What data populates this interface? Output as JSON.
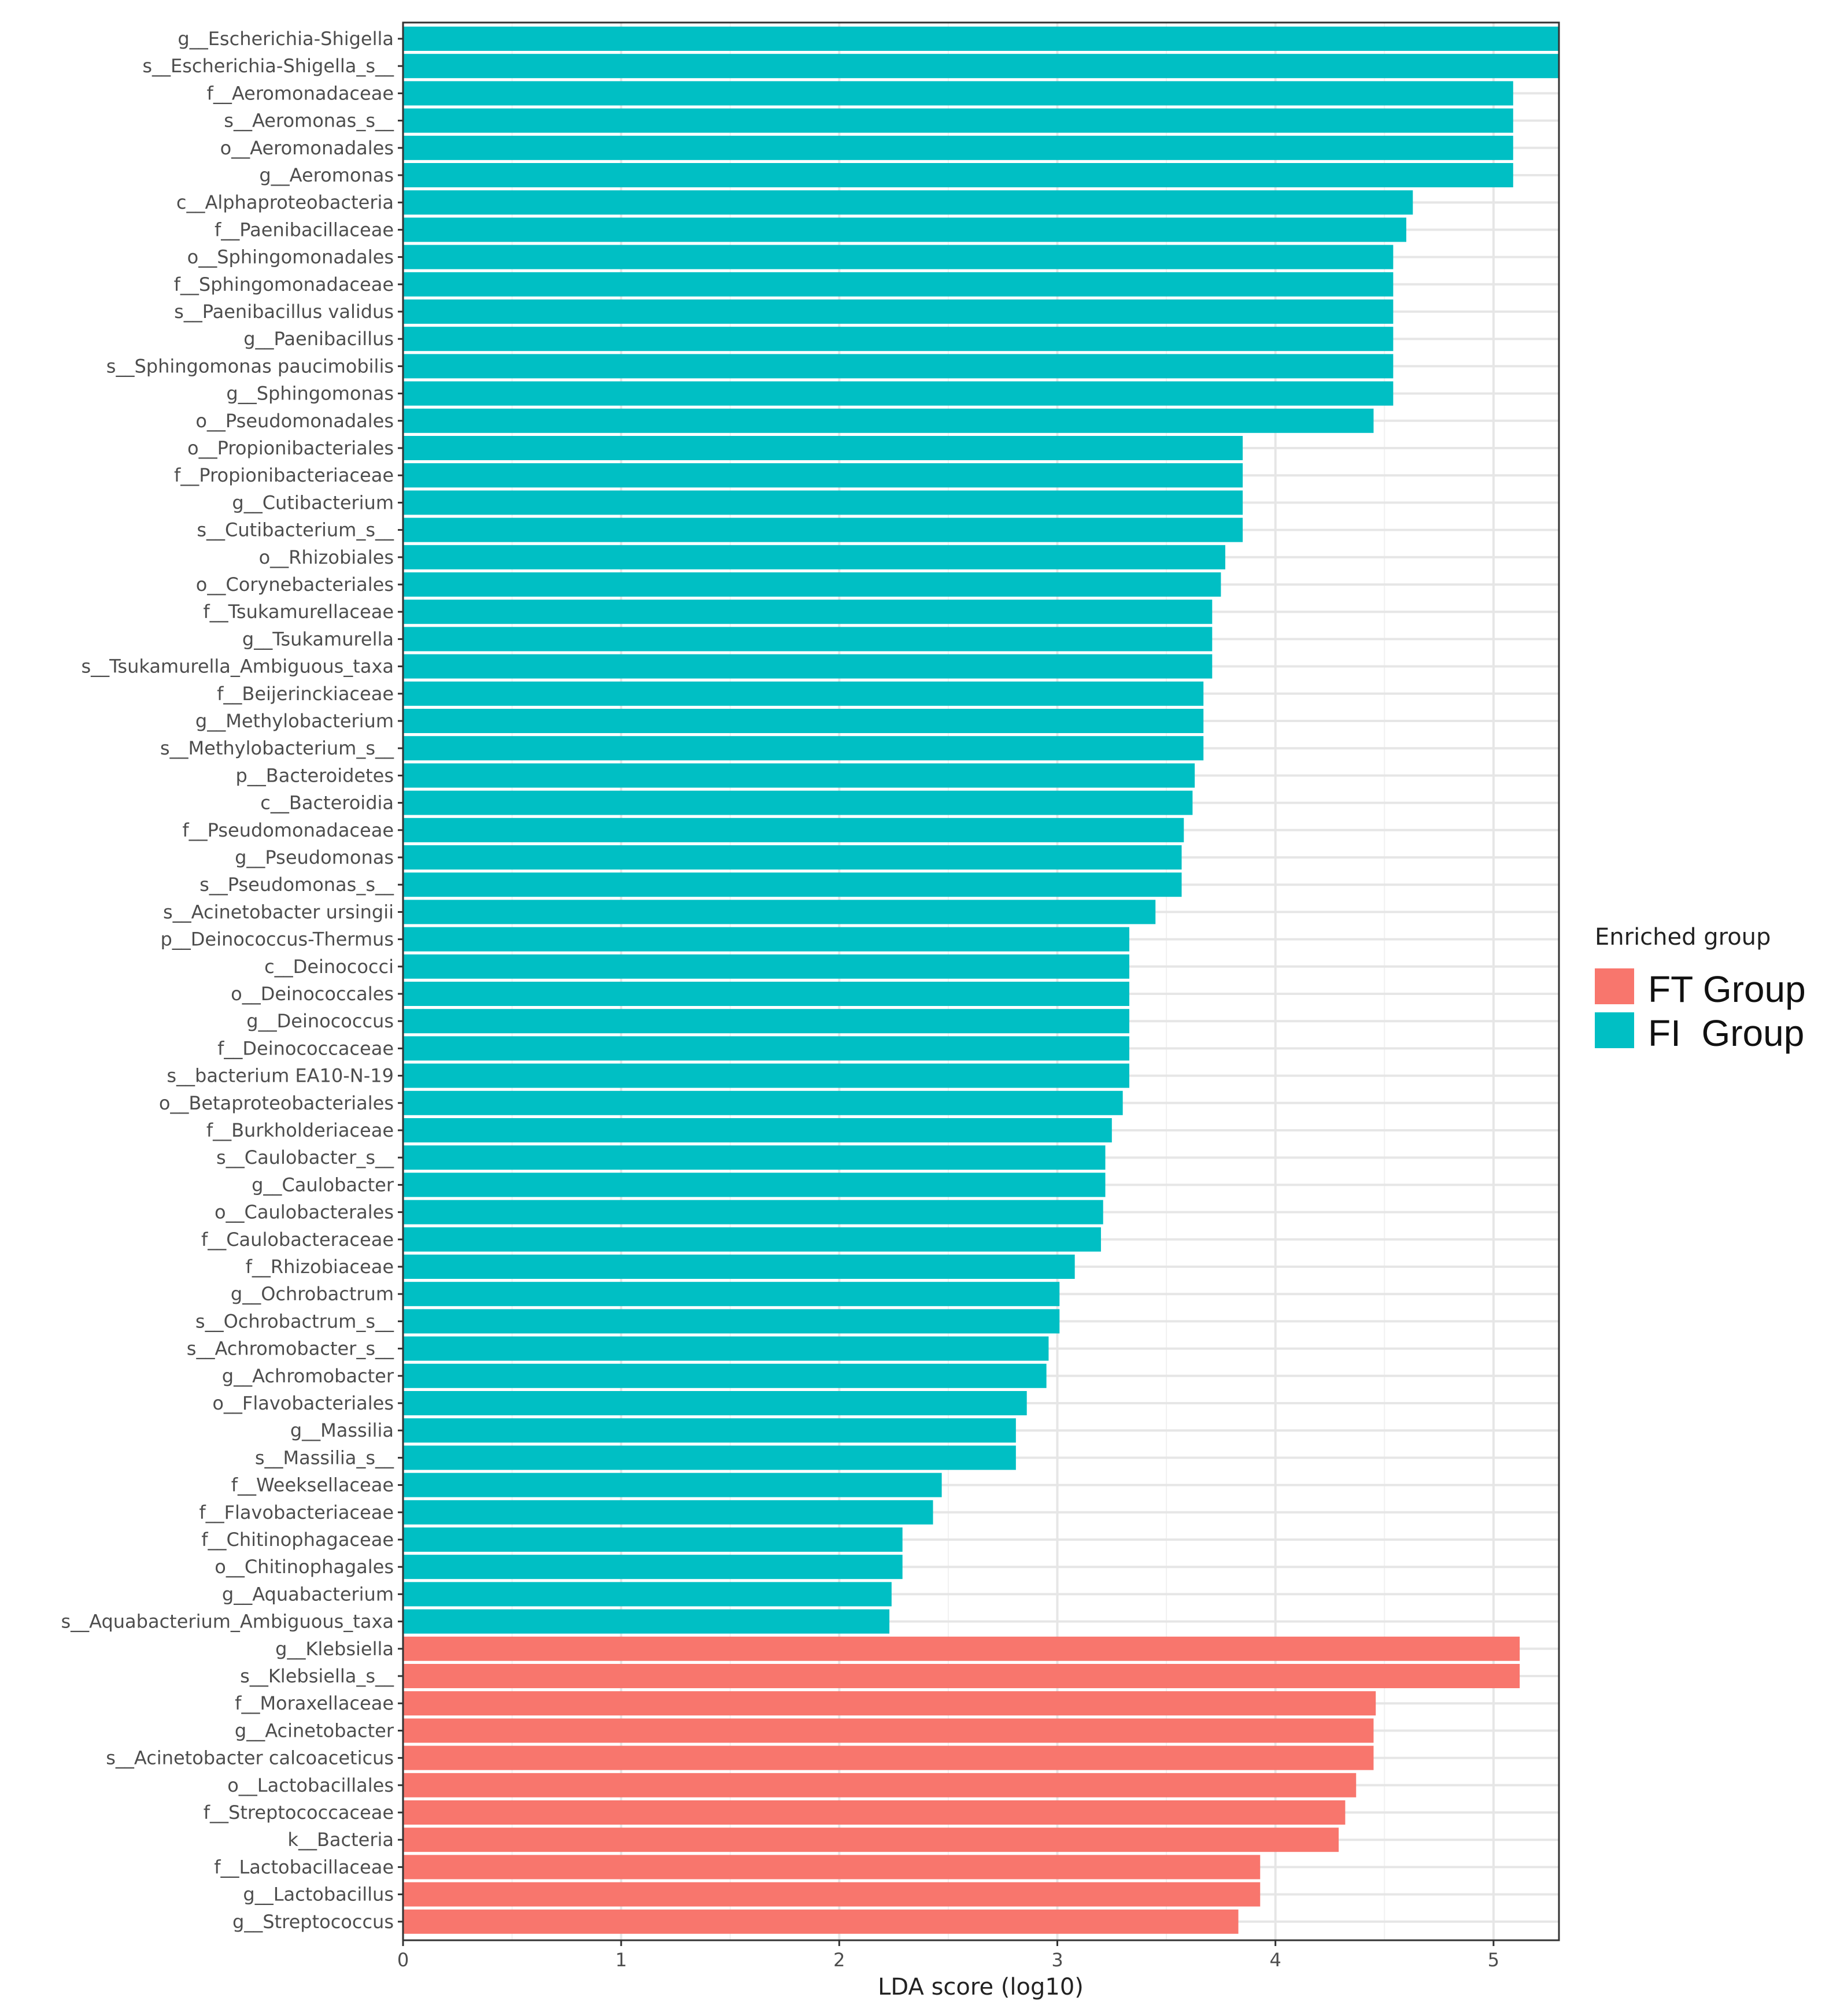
{
  "chart_data": {
    "type": "bar",
    "orientation": "horizontal",
    "title": "",
    "xlabel": "LDA score (log10)",
    "ylabel": "",
    "xlim": [
      0,
      5.3
    ],
    "xticks": [
      0,
      1,
      2,
      3,
      4,
      5
    ],
    "grid": true,
    "legend": {
      "title": "Enriched group",
      "position": "right",
      "entries": [
        {
          "label": "FT Group",
          "color": "#F8766D"
        },
        {
          "label": "FI  Group",
          "color": "#00BFC4"
        }
      ]
    },
    "series": [
      {
        "name": "FI  Group",
        "color": "#00BFC4",
        "categories": [
          "g__Escherichia-Shigella",
          "s__Escherichia-Shigella_s__",
          "f__Aeromonadaceae",
          "s__Aeromonas_s__",
          "o__Aeromonadales",
          "g__Aeromonas",
          "c__Alphaproteobacteria",
          "f__Paenibacillaceae",
          "o__Sphingomonadales",
          "f__Sphingomonadaceae",
          "s__Paenibacillus validus",
          "g__Paenibacillus",
          "s__Sphingomonas paucimobilis",
          "g__Sphingomonas",
          "o__Pseudomonadales",
          "o__Propionibacteriales",
          "f__Propionibacteriaceae",
          "g__Cutibacterium",
          "s__Cutibacterium_s__",
          "o__Rhizobiales",
          "o__Corynebacteriales",
          "f__Tsukamurellaceae",
          "g__Tsukamurella",
          "s__Tsukamurella_Ambiguous_taxa",
          "f__Beijerinckiaceae",
          "g__Methylobacterium",
          "s__Methylobacterium_s__",
          "p__Bacteroidetes",
          "c__Bacteroidia",
          "f__Pseudomonadaceae",
          "g__Pseudomonas",
          "s__Pseudomonas_s__",
          "s__Acinetobacter ursingii",
          "p__Deinococcus-Thermus",
          "c__Deinococci",
          "o__Deinococcales",
          "g__Deinococcus",
          "f__Deinococcaceae",
          "s__bacterium EA10-N-19",
          "o__Betaproteobacteriales",
          "f__Burkholderiaceae",
          "s__Caulobacter_s__",
          "g__Caulobacter",
          "o__Caulobacterales",
          "f__Caulobacteraceae",
          "f__Rhizobiaceae",
          "g__Ochrobactrum",
          "s__Ochrobactrum_s__",
          "s__Achromobacter_s__",
          "g__Achromobacter",
          "o__Flavobacteriales",
          "g__Massilia",
          "s__Massilia_s__",
          "f__Weeksellaceae",
          "f__Flavobacteriaceae",
          "f__Chitinophagaceae",
          "o__Chitinophagales",
          "g__Aquabacterium",
          "s__Aquabacterium_Ambiguous_taxa"
        ],
        "values": [
          5.3,
          5.3,
          5.09,
          5.09,
          5.09,
          5.09,
          4.63,
          4.6,
          4.54,
          4.54,
          4.54,
          4.54,
          4.54,
          4.54,
          4.45,
          3.85,
          3.85,
          3.85,
          3.85,
          3.77,
          3.75,
          3.71,
          3.71,
          3.71,
          3.67,
          3.67,
          3.67,
          3.63,
          3.62,
          3.58,
          3.57,
          3.57,
          3.45,
          3.33,
          3.33,
          3.33,
          3.33,
          3.33,
          3.33,
          3.3,
          3.25,
          3.22,
          3.22,
          3.21,
          3.2,
          3.08,
          3.01,
          3.01,
          2.96,
          2.95,
          2.86,
          2.81,
          2.81,
          2.47,
          2.43,
          2.29,
          2.29,
          2.24,
          2.23
        ]
      },
      {
        "name": "FT Group",
        "color": "#F8766D",
        "categories": [
          "g__Klebsiella",
          "s__Klebsiella_s__",
          "f__Moraxellaceae",
          "g__Acinetobacter",
          "s__Acinetobacter calcoaceticus",
          "o__Lactobacillales",
          "f__Streptococcaceae",
          "k__Bacteria",
          "f__Lactobacillaceae",
          "g__Lactobacillus",
          "g__Streptococcus"
        ],
        "values": [
          5.12,
          5.12,
          4.46,
          4.45,
          4.45,
          4.37,
          4.32,
          4.29,
          3.93,
          3.93,
          3.83
        ]
      }
    ]
  }
}
